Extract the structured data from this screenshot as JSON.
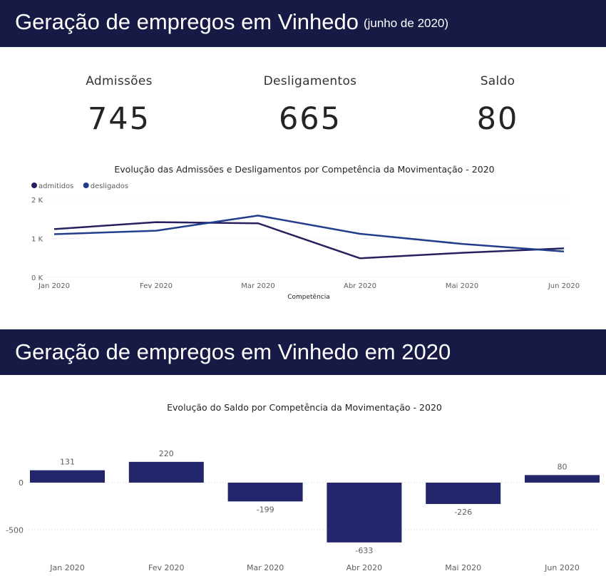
{
  "section1": {
    "title": "Geração de empregos em Vinhedo",
    "subtitle": "(junho de 2020)"
  },
  "kpis": [
    {
      "label": "Admissões",
      "value": "745"
    },
    {
      "label": "Desligamentos",
      "value": "665"
    },
    {
      "label": "Saldo",
      "value": "80"
    }
  ],
  "section2": {
    "title": "Geração de empregos em Vinhedo em 2020"
  },
  "colors": {
    "banner": "#171a45",
    "admitidos": "#24215e",
    "desligados": "#213d8b",
    "saldo_bar": "#24266b"
  },
  "chart_data": [
    {
      "type": "line",
      "title": "Evolução das Admissões e Desligamentos por Competência da Movimentação - 2020",
      "xlabel": "Competência",
      "ylabel": "",
      "categories": [
        "Jan 2020",
        "Fev 2020",
        "Mar 2020",
        "Abr 2020",
        "Mai 2020",
        "Jun 2020"
      ],
      "series": [
        {
          "name": "admitidos",
          "values": [
            1240,
            1420,
            1390,
            490,
            630,
            745
          ]
        },
        {
          "name": "desligados",
          "values": [
            1110,
            1200,
            1590,
            1120,
            860,
            665
          ]
        }
      ],
      "ylim": [
        0,
        2000
      ],
      "yticks": [
        0,
        1000,
        2000
      ],
      "ytick_labels": [
        "0 K",
        "1 K",
        "2 K"
      ],
      "grid": true,
      "legend_position": "top-left"
    },
    {
      "type": "bar",
      "title": "Evolução do Saldo por Competência da Movimentação - 2020",
      "xlabel": "",
      "ylabel": "",
      "categories": [
        "Jan 2020",
        "Fev 2020",
        "Mar 2020",
        "Abr 2020",
        "Mai 2020",
        "Jun 2020"
      ],
      "values": [
        131,
        220,
        -199,
        -633,
        -226,
        80
      ],
      "yticks": [
        0,
        -500
      ],
      "ytick_labels": [
        "0",
        "-500"
      ],
      "ylim": [
        -700,
        330
      ],
      "grid": true,
      "data_labels": true
    }
  ]
}
